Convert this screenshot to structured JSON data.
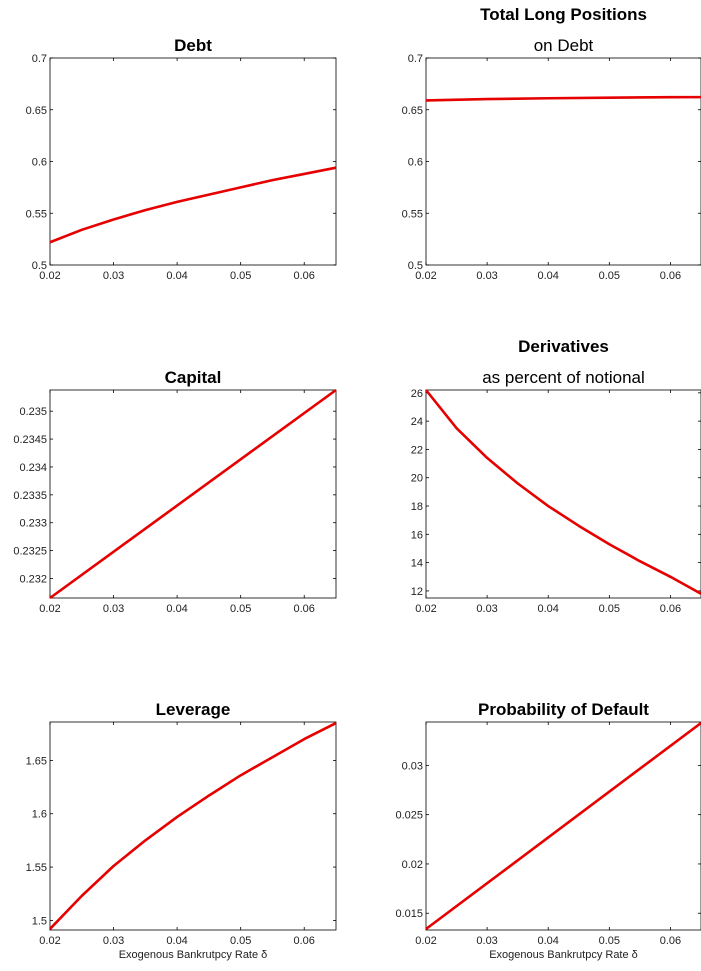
{
  "colors": {
    "line": "#e60000",
    "axis": "#000000"
  },
  "chart_data": [
    {
      "type": "line",
      "title": "Debt",
      "subtitle": "",
      "xlabel": "",
      "xlim": [
        0.02,
        0.065
      ],
      "ylim": [
        0.5,
        0.7
      ],
      "xticks": [
        0.02,
        0.03,
        0.04,
        0.05,
        0.06
      ],
      "xtick_labels": [
        "0.02",
        "0.03",
        "0.04",
        "0.05",
        "0.06"
      ],
      "yticks": [
        0.5,
        0.55,
        0.6,
        0.65,
        0.7
      ],
      "ytick_labels": [
        "0.5",
        "0.55",
        "0.6",
        "0.65",
        "0.7"
      ],
      "series": [
        {
          "x": [
            0.02,
            0.025,
            0.03,
            0.035,
            0.04,
            0.045,
            0.05,
            0.055,
            0.06,
            0.065
          ],
          "y": [
            0.522,
            0.534,
            0.544,
            0.553,
            0.561,
            0.568,
            0.575,
            0.582,
            0.588,
            0.594
          ]
        }
      ]
    },
    {
      "type": "line",
      "title": "Total Long Positions",
      "subtitle": "on Debt",
      "xlabel": "",
      "xlim": [
        0.02,
        0.065
      ],
      "ylim": [
        0.5,
        0.7
      ],
      "xticks": [
        0.02,
        0.03,
        0.04,
        0.05,
        0.06
      ],
      "xtick_labels": [
        "0.02",
        "0.03",
        "0.04",
        "0.05",
        "0.06"
      ],
      "yticks": [
        0.5,
        0.55,
        0.6,
        0.65,
        0.7
      ],
      "ytick_labels": [
        "0.5",
        "0.55",
        "0.6",
        "0.65",
        "0.7"
      ],
      "series": [
        {
          "x": [
            0.02,
            0.03,
            0.04,
            0.05,
            0.06,
            0.065
          ],
          "y": [
            0.659,
            0.6603,
            0.6611,
            0.6617,
            0.6621,
            0.6622
          ]
        }
      ]
    },
    {
      "type": "line",
      "title": "Capital",
      "subtitle": "",
      "xlabel": "",
      "xlim": [
        0.02,
        0.065
      ],
      "ylim": [
        0.23165,
        0.23538
      ],
      "xticks": [
        0.02,
        0.03,
        0.04,
        0.05,
        0.06
      ],
      "xtick_labels": [
        "0.02",
        "0.03",
        "0.04",
        "0.05",
        "0.06"
      ],
      "yticks": [
        0.232,
        0.2325,
        0.233,
        0.2335,
        0.234,
        0.2345,
        0.235
      ],
      "ytick_labels": [
        "0.232",
        "0.2325",
        "0.233",
        "0.2335",
        "0.234",
        "0.2345",
        "0.235"
      ],
      "series": [
        {
          "x": [
            0.02,
            0.065
          ],
          "y": [
            0.23165,
            0.23538
          ]
        }
      ]
    },
    {
      "type": "line",
      "title": "Derivatives",
      "subtitle": "as percent of notional",
      "xlabel": "",
      "xlim": [
        0.02,
        0.065
      ],
      "ylim": [
        11.5,
        26.2
      ],
      "xticks": [
        0.02,
        0.03,
        0.04,
        0.05,
        0.06
      ],
      "xtick_labels": [
        "0.02",
        "0.03",
        "0.04",
        "0.05",
        "0.06"
      ],
      "yticks": [
        12,
        14,
        16,
        18,
        20,
        22,
        24,
        26
      ],
      "ytick_labels": [
        "12",
        "14",
        "16",
        "18",
        "20",
        "22",
        "24",
        "26"
      ],
      "series": [
        {
          "x": [
            0.02,
            0.025,
            0.03,
            0.035,
            0.04,
            0.045,
            0.05,
            0.055,
            0.06,
            0.065
          ],
          "y": [
            26.2,
            23.5,
            21.4,
            19.6,
            18.0,
            16.6,
            15.3,
            14.1,
            13.0,
            11.8
          ]
        }
      ]
    },
    {
      "type": "line",
      "title": "Leverage",
      "subtitle": "",
      "xlabel": "Exogenous Bankrutpcy Rate δ",
      "xlim": [
        0.02,
        0.065
      ],
      "ylim": [
        1.491,
        1.686
      ],
      "xticks": [
        0.02,
        0.03,
        0.04,
        0.05,
        0.06
      ],
      "xtick_labels": [
        "0.02",
        "0.03",
        "0.04",
        "0.05",
        "0.06"
      ],
      "yticks": [
        1.5,
        1.55,
        1.6,
        1.65
      ],
      "ytick_labels": [
        "1.5",
        "1.55",
        "1.6",
        "1.65"
      ],
      "series": [
        {
          "x": [
            0.02,
            0.025,
            0.03,
            0.035,
            0.04,
            0.045,
            0.05,
            0.055,
            0.06,
            0.065
          ],
          "y": [
            1.492,
            1.523,
            1.551,
            1.575,
            1.597,
            1.617,
            1.636,
            1.653,
            1.67,
            1.685
          ]
        }
      ]
    },
    {
      "type": "line",
      "title": "Probability of Default",
      "subtitle": "",
      "xlabel": "Exogenous Bankrutpcy Rate δ",
      "xlim": [
        0.02,
        0.065
      ],
      "ylim": [
        0.0133,
        0.0344
      ],
      "xticks": [
        0.02,
        0.03,
        0.04,
        0.05,
        0.06
      ],
      "xtick_labels": [
        "0.02",
        "0.03",
        "0.04",
        "0.05",
        "0.06"
      ],
      "yticks": [
        0.015,
        0.02,
        0.025,
        0.03
      ],
      "ytick_labels": [
        "0.015",
        "0.02",
        "0.025",
        "0.03"
      ],
      "series": [
        {
          "x": [
            0.02,
            0.065
          ],
          "y": [
            0.0134,
            0.0343
          ]
        }
      ]
    }
  ]
}
